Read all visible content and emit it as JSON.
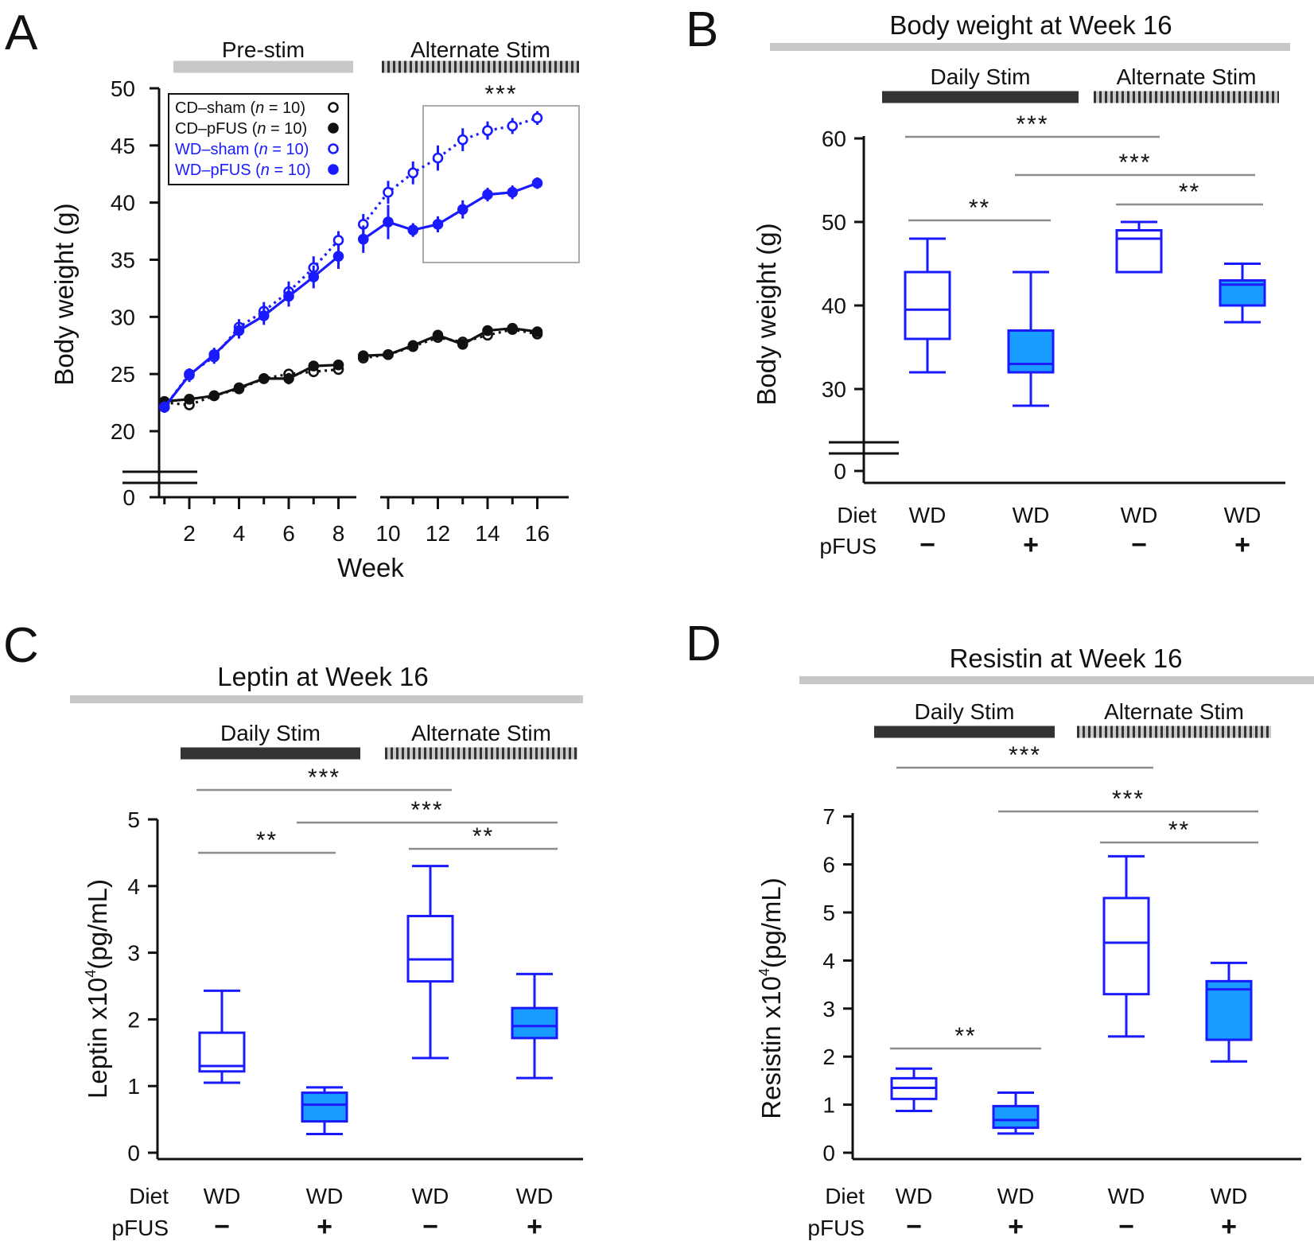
{
  "colors": {
    "blue": "#1a1aff",
    "fill_blue": "#1a9bff",
    "black": "#111111",
    "dark_bar": "#333333",
    "gray_bar": "#c8c8c8",
    "bracket": "#8c8c8c",
    "inset": "#aaaaaa"
  },
  "chart_data": [
    {
      "panel": "A",
      "type": "line",
      "xlabel": "Week",
      "ylabel": "Body weight (g)",
      "yticks": [
        0,
        20,
        25,
        30,
        35,
        40,
        45,
        50
      ],
      "xticks": [
        2,
        4,
        6,
        8,
        10,
        12,
        14,
        16
      ],
      "ylim_broken": [
        20,
        50
      ],
      "period_bars": [
        {
          "label": "Pre-stim",
          "style": "solid-gray"
        },
        {
          "label": "Alternate Stim",
          "style": "dashed"
        }
      ],
      "significance": "***",
      "legend": [
        {
          "label": "CD–sham",
          "n_label": "n",
          "n_value": "10",
          "marker": "open",
          "color": "black",
          "line": "dotted"
        },
        {
          "label": "CD–pFUS",
          "n_label": "n",
          "n_value": "10",
          "marker": "filled",
          "color": "black",
          "line": "solid"
        },
        {
          "label": "WD–sham",
          "n_label": "n",
          "n_value": "10",
          "marker": "open",
          "color": "blue",
          "line": "dotted"
        },
        {
          "label": "WD–pFUS",
          "n_label": "n",
          "n_value": "10",
          "marker": "filled",
          "color": "blue",
          "line": "solid"
        }
      ],
      "series": [
        {
          "name": "CD–sham",
          "segments": [
            {
              "x": [
                1,
                2,
                3,
                4,
                5,
                6,
                7,
                8
              ],
              "y": [
                22.5,
                22.3,
                23.1,
                23.7,
                24.6,
                25.0,
                25.2,
                25.4
              ],
              "err": [
                0.4,
                0.4,
                0.3,
                0.3,
                0.3,
                0.4,
                0.3,
                0.3
              ]
            },
            {
              "x": [
                9,
                10,
                11,
                12,
                13,
                14,
                15,
                16
              ],
              "y": [
                26.4,
                26.7,
                27.4,
                28.2,
                27.8,
                28.4,
                28.9,
                28.5
              ],
              "err": [
                0.3,
                0.3,
                0.3,
                0.4,
                0.3,
                0.4,
                0.3,
                0.3
              ]
            }
          ]
        },
        {
          "name": "CD–pFUS",
          "segments": [
            {
              "x": [
                1,
                2,
                3,
                4,
                5,
                6,
                7,
                8
              ],
              "y": [
                22.6,
                22.8,
                23.1,
                23.8,
                24.6,
                24.6,
                25.7,
                25.8
              ],
              "err": [
                0.4,
                0.3,
                0.3,
                0.3,
                0.3,
                0.5,
                0.3,
                0.4
              ]
            },
            {
              "x": [
                9,
                10,
                11,
                12,
                13,
                14,
                15,
                16
              ],
              "y": [
                26.6,
                26.7,
                27.5,
                28.4,
                27.6,
                28.8,
                29.0,
                28.7
              ],
              "err": [
                0.3,
                0.3,
                0.3,
                0.4,
                0.4,
                0.4,
                0.3,
                0.3
              ]
            }
          ]
        },
        {
          "name": "WD–sham",
          "segments": [
            {
              "x": [
                1,
                2,
                3,
                4,
                5,
                6,
                7,
                8
              ],
              "y": [
                22.1,
                25.0,
                26.5,
                29.1,
                30.5,
                32.2,
                34.3,
                36.7
              ],
              "err": [
                0.4,
                0.5,
                0.6,
                0.7,
                0.8,
                0.9,
                1.0,
                0.8
              ]
            },
            {
              "x": [
                9,
                10,
                11,
                12,
                13,
                14,
                15,
                16
              ],
              "y": [
                38.1,
                40.9,
                42.6,
                43.9,
                45.5,
                46.3,
                46.7,
                47.4
              ],
              "err": [
                0.9,
                1.0,
                1.0,
                1.1,
                1.0,
                0.8,
                0.7,
                0.6
              ]
            }
          ]
        },
        {
          "name": "WD–pFUS",
          "segments": [
            {
              "x": [
                1,
                2,
                3,
                4,
                5,
                6,
                7,
                8
              ],
              "y": [
                22.1,
                24.9,
                26.7,
                28.8,
                30.1,
                31.8,
                33.5,
                35.3
              ],
              "err": [
                0.5,
                0.6,
                0.6,
                0.7,
                0.8,
                0.9,
                1.0,
                1.1
              ]
            },
            {
              "x": [
                9,
                10,
                11,
                12,
                13,
                14,
                15,
                16
              ],
              "y": [
                36.8,
                38.3,
                37.6,
                38.1,
                39.4,
                40.7,
                40.9,
                41.7
              ],
              "err": [
                1.2,
                1.5,
                0.6,
                0.7,
                0.8,
                0.6,
                0.6,
                0.5
              ]
            }
          ]
        }
      ]
    },
    {
      "panel": "B",
      "type": "box",
      "title": "Body weight at Week 16",
      "ylabel": "Body weight (g)",
      "yticks": [
        0,
        30,
        40,
        50,
        60
      ],
      "ylim_broken": [
        25,
        60
      ],
      "period_bars": [
        {
          "label": "Daily Stim",
          "style": "solid-dark"
        },
        {
          "label": "Alternate Stim",
          "style": "dashed"
        }
      ],
      "row_labels": {
        "diet": "Diet",
        "pfus": "pFUS"
      },
      "boxes": [
        {
          "diet": "WD",
          "pfus": "−",
          "filled": false,
          "min": 32,
          "q1": 36,
          "median": 39.5,
          "q3": 44,
          "max": 48
        },
        {
          "diet": "WD",
          "pfus": "+",
          "filled": true,
          "min": 28,
          "q1": 32,
          "median": 33,
          "q3": 37,
          "max": 44
        },
        {
          "diet": "WD",
          "pfus": "−",
          "filled": false,
          "min": 44,
          "q1": 44,
          "median": 48,
          "q3": 49,
          "max": 50
        },
        {
          "diet": "WD",
          "pfus": "+",
          "filled": true,
          "min": 38,
          "q1": 40,
          "median": 42.5,
          "q3": 43,
          "max": 45
        }
      ],
      "brackets": [
        {
          "from": 0,
          "to": 2,
          "stars": "***"
        },
        {
          "from": 1,
          "to": 3,
          "stars": "***"
        },
        {
          "from": 0,
          "to": 1,
          "stars": "**"
        },
        {
          "from": 2,
          "to": 3,
          "stars": "**"
        }
      ]
    },
    {
      "panel": "C",
      "type": "box",
      "title": "Leptin at Week 16",
      "ylabel_main": "Leptin x10",
      "ylabel_sup": "4",
      "ylabel_unit": "(pg/mL)",
      "yticks": [
        0,
        1,
        2,
        3,
        4,
        5
      ],
      "ylim": [
        0,
        5
      ],
      "period_bars": [
        {
          "label": "Daily Stim",
          "style": "solid-dark"
        },
        {
          "label": "Alternate Stim",
          "style": "dashed"
        }
      ],
      "row_labels": {
        "diet": "Diet",
        "pfus": "pFUS"
      },
      "boxes": [
        {
          "diet": "WD",
          "pfus": "−",
          "filled": false,
          "min": 1.05,
          "q1": 1.22,
          "median": 1.3,
          "q3": 1.8,
          "max": 2.43
        },
        {
          "diet": "WD",
          "pfus": "+",
          "filled": true,
          "min": 0.28,
          "q1": 0.47,
          "median": 0.72,
          "q3": 0.9,
          "max": 0.98
        },
        {
          "diet": "WD",
          "pfus": "−",
          "filled": false,
          "min": 1.42,
          "q1": 2.57,
          "median": 2.9,
          "q3": 3.55,
          "max": 4.3
        },
        {
          "diet": "WD",
          "pfus": "+",
          "filled": true,
          "min": 1.12,
          "q1": 1.72,
          "median": 1.9,
          "q3": 2.17,
          "max": 2.68
        }
      ],
      "brackets": [
        {
          "from": 0,
          "to": 2,
          "stars": "***"
        },
        {
          "from": 1,
          "to": 3,
          "stars": "***"
        },
        {
          "from": 0,
          "to": 1,
          "stars": "**"
        },
        {
          "from": 2,
          "to": 3,
          "stars": "**"
        }
      ]
    },
    {
      "panel": "D",
      "type": "box",
      "title": "Resistin at Week 16",
      "ylabel_main": "Resistin x10",
      "ylabel_sup": "4",
      "ylabel_unit": "(pg/mL)",
      "yticks": [
        0,
        1,
        2,
        3,
        4,
        5,
        6,
        7
      ],
      "ylim": [
        0,
        7
      ],
      "period_bars": [
        {
          "label": "Daily Stim",
          "style": "solid-dark"
        },
        {
          "label": "Alternate Stim",
          "style": "dashed"
        }
      ],
      "row_labels": {
        "diet": "Diet",
        "pfus": "pFUS"
      },
      "boxes": [
        {
          "diet": "WD",
          "pfus": "−",
          "filled": false,
          "min": 0.87,
          "q1": 1.12,
          "median": 1.35,
          "q3": 1.55,
          "max": 1.75
        },
        {
          "diet": "WD",
          "pfus": "+",
          "filled": true,
          "min": 0.4,
          "q1": 0.52,
          "median": 0.68,
          "q3": 0.97,
          "max": 1.25
        },
        {
          "diet": "WD",
          "pfus": "−",
          "filled": false,
          "min": 2.42,
          "q1": 3.3,
          "median": 4.37,
          "q3": 5.3,
          "max": 6.17
        },
        {
          "diet": "WD",
          "pfus": "+",
          "filled": true,
          "min": 1.9,
          "q1": 2.35,
          "median": 3.4,
          "q3": 3.57,
          "max": 3.95
        }
      ],
      "brackets": [
        {
          "from": 0,
          "to": 2,
          "stars": "***"
        },
        {
          "from": 1,
          "to": 3,
          "stars": "***"
        },
        {
          "from": 2,
          "to": 3,
          "stars": "**"
        },
        {
          "from": 0,
          "to": 1,
          "stars": "**"
        }
      ]
    }
  ]
}
